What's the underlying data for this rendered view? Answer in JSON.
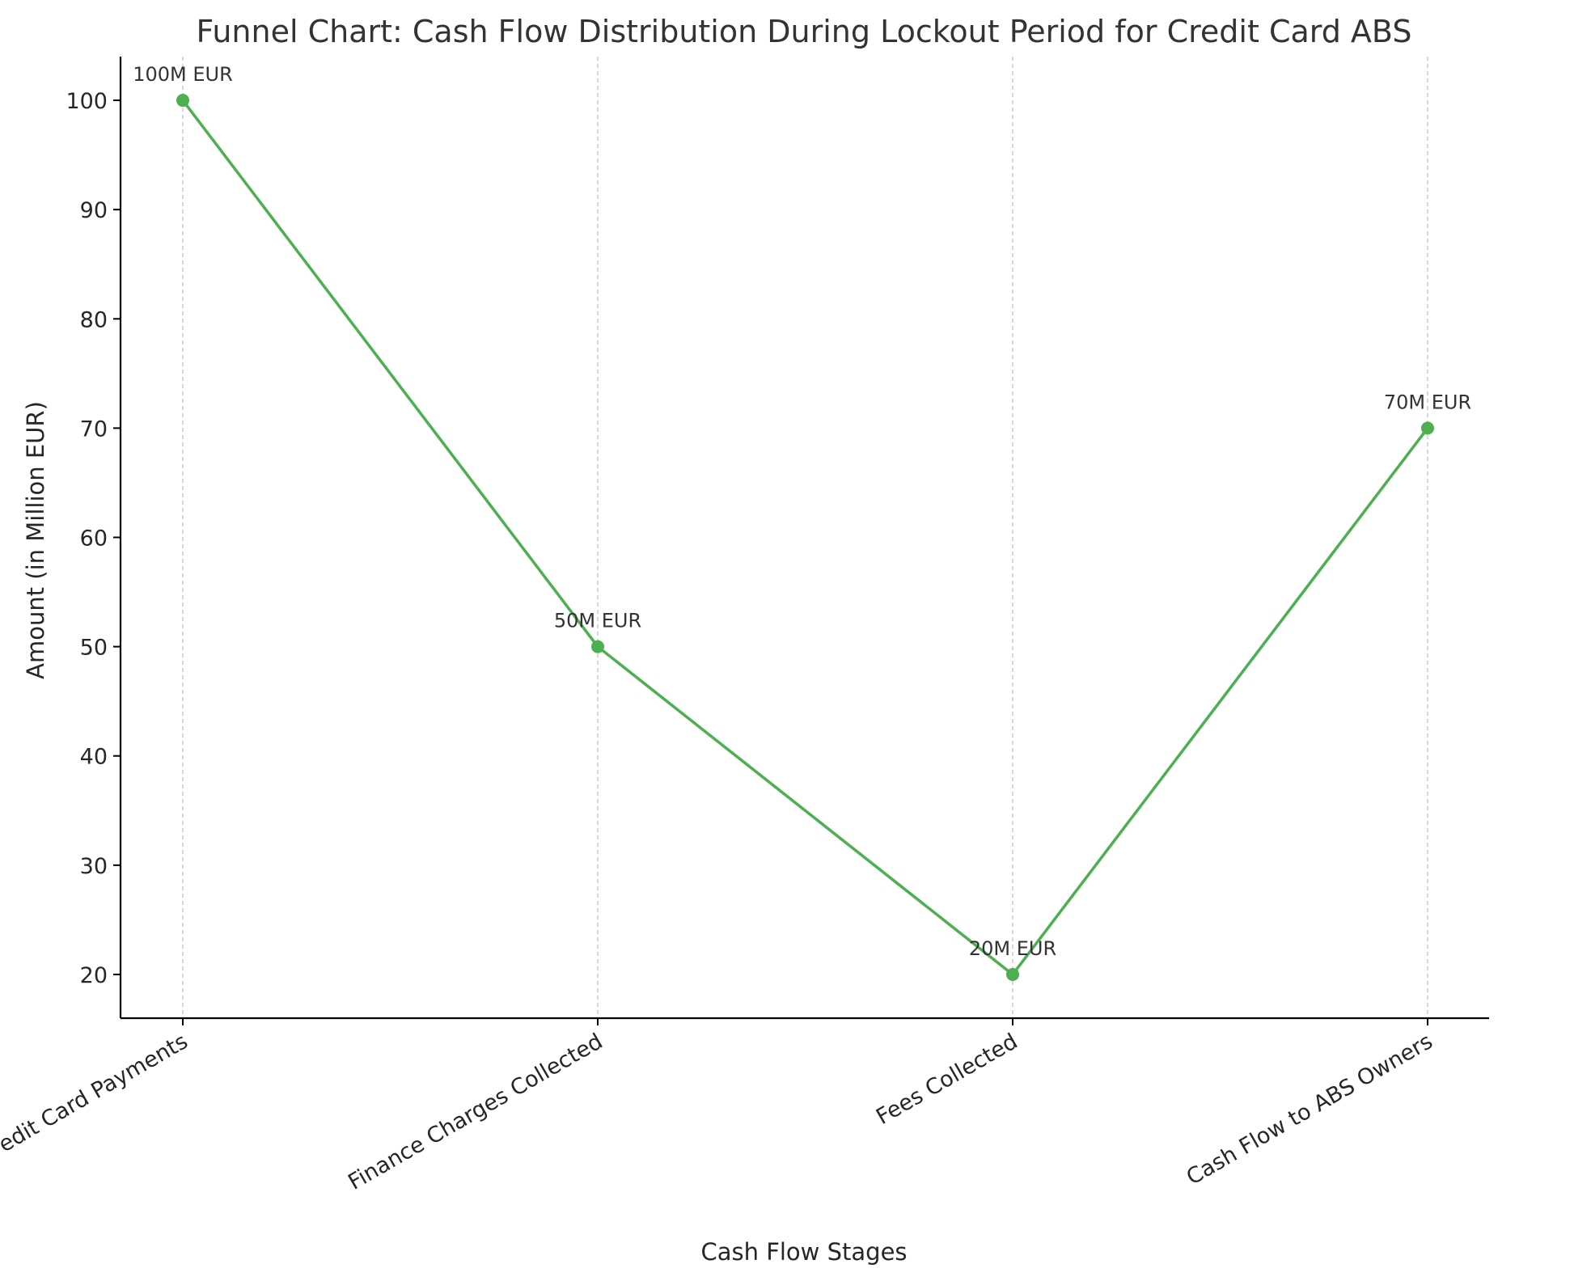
{
  "chart_data": {
    "type": "line",
    "title": "Funnel Chart: Cash Flow Distribution During Lockout Period for Credit Card ABS",
    "xlabel": "Cash Flow Stages",
    "ylabel": "Amount (in Million EUR)",
    "categories": [
      "Total Credit Card Payments",
      "Finance Charges Collected",
      "Fees Collected",
      "Cash Flow to ABS Owners"
    ],
    "values": [
      100,
      50,
      20,
      70
    ],
    "data_labels": [
      "100M EUR",
      "50M EUR",
      "20M EUR",
      "70M EUR"
    ],
    "yticks": [
      20,
      30,
      40,
      50,
      60,
      70,
      80,
      90,
      100
    ],
    "ylim": [
      16,
      104
    ],
    "grid": "x-dashed",
    "legend": "none",
    "colors": {
      "line": "#4caf50",
      "grid": "#bfbfbf",
      "axis": "#000000"
    }
  }
}
